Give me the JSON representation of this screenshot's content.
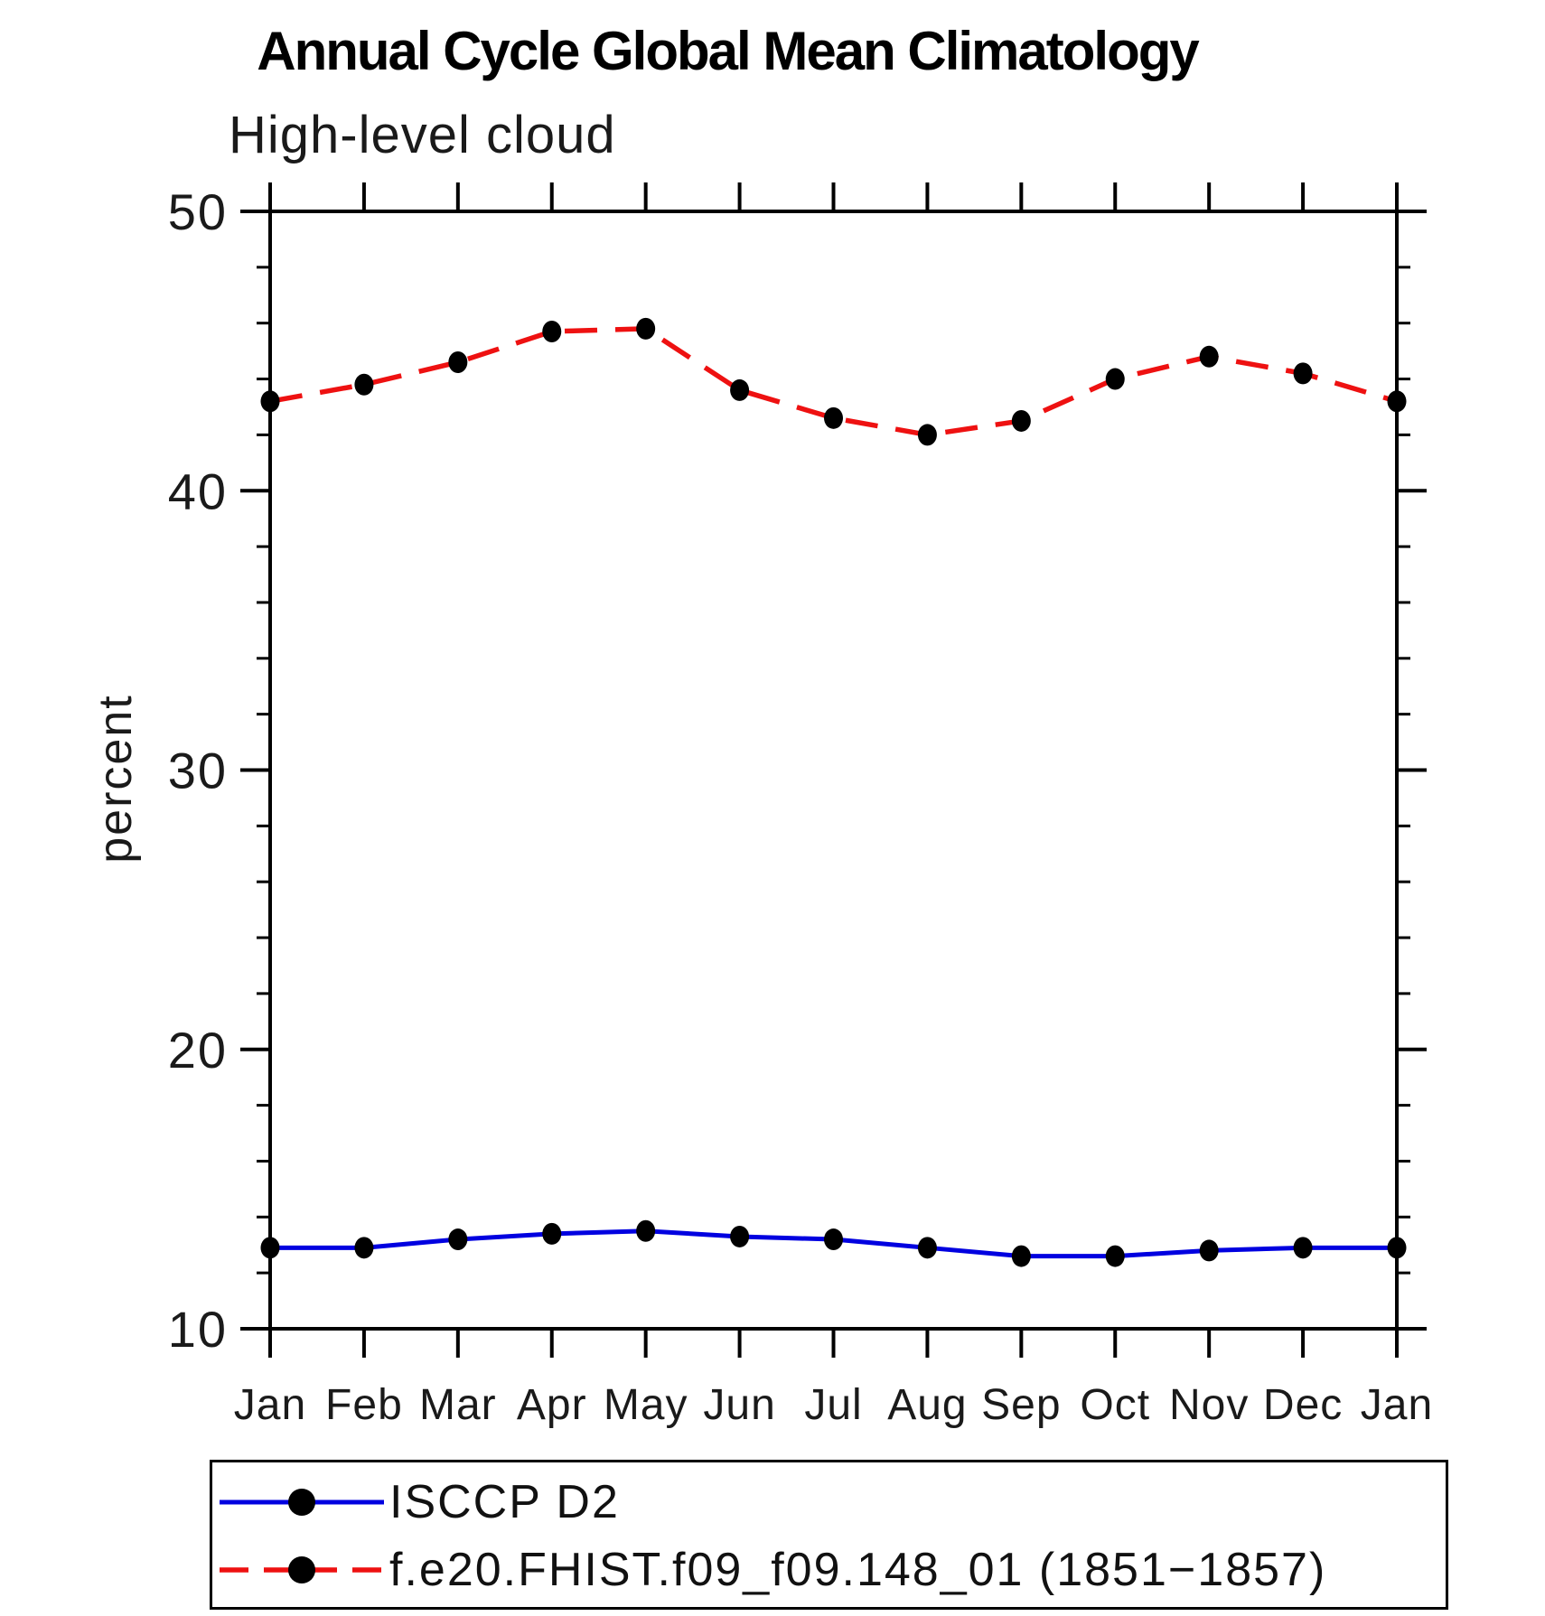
{
  "chart": {
    "title": "Annual Cycle Global Mean Climatology",
    "subtitle": "High-level cloud",
    "ylabel": "percent"
  },
  "chart_data": {
    "type": "line",
    "title": "Annual Cycle Global Mean Climatology",
    "subtitle": "High-level cloud",
    "xlabel": "",
    "ylabel": "percent",
    "categories": [
      "Jan",
      "Feb",
      "Mar",
      "Apr",
      "May",
      "Jun",
      "Jul",
      "Aug",
      "Sep",
      "Oct",
      "Nov",
      "Dec",
      "Jan"
    ],
    "ylim": [
      10,
      50
    ],
    "ytick_major": [
      10,
      20,
      30,
      40,
      50
    ],
    "ytick_minor_step": 2,
    "grid": false,
    "legend_position": "bottom",
    "marker_color": "#000000",
    "series": [
      {
        "name": "ISCCP D2",
        "color": "#0000e0",
        "style": "solid",
        "marker": "filled-circle",
        "values": [
          12.9,
          12.9,
          13.2,
          13.4,
          13.5,
          13.3,
          13.2,
          12.9,
          12.6,
          12.6,
          12.8,
          12.9,
          12.9
        ]
      },
      {
        "name": "f.e20.FHIST.f09_f09.148_01 (1851−1857)",
        "color": "#ee1111",
        "style": "dashed",
        "marker": "filled-circle",
        "values": [
          43.2,
          43.8,
          44.6,
          45.7,
          45.8,
          43.6,
          42.6,
          42.0,
          42.5,
          44.0,
          44.8,
          44.2,
          43.2
        ]
      }
    ]
  }
}
